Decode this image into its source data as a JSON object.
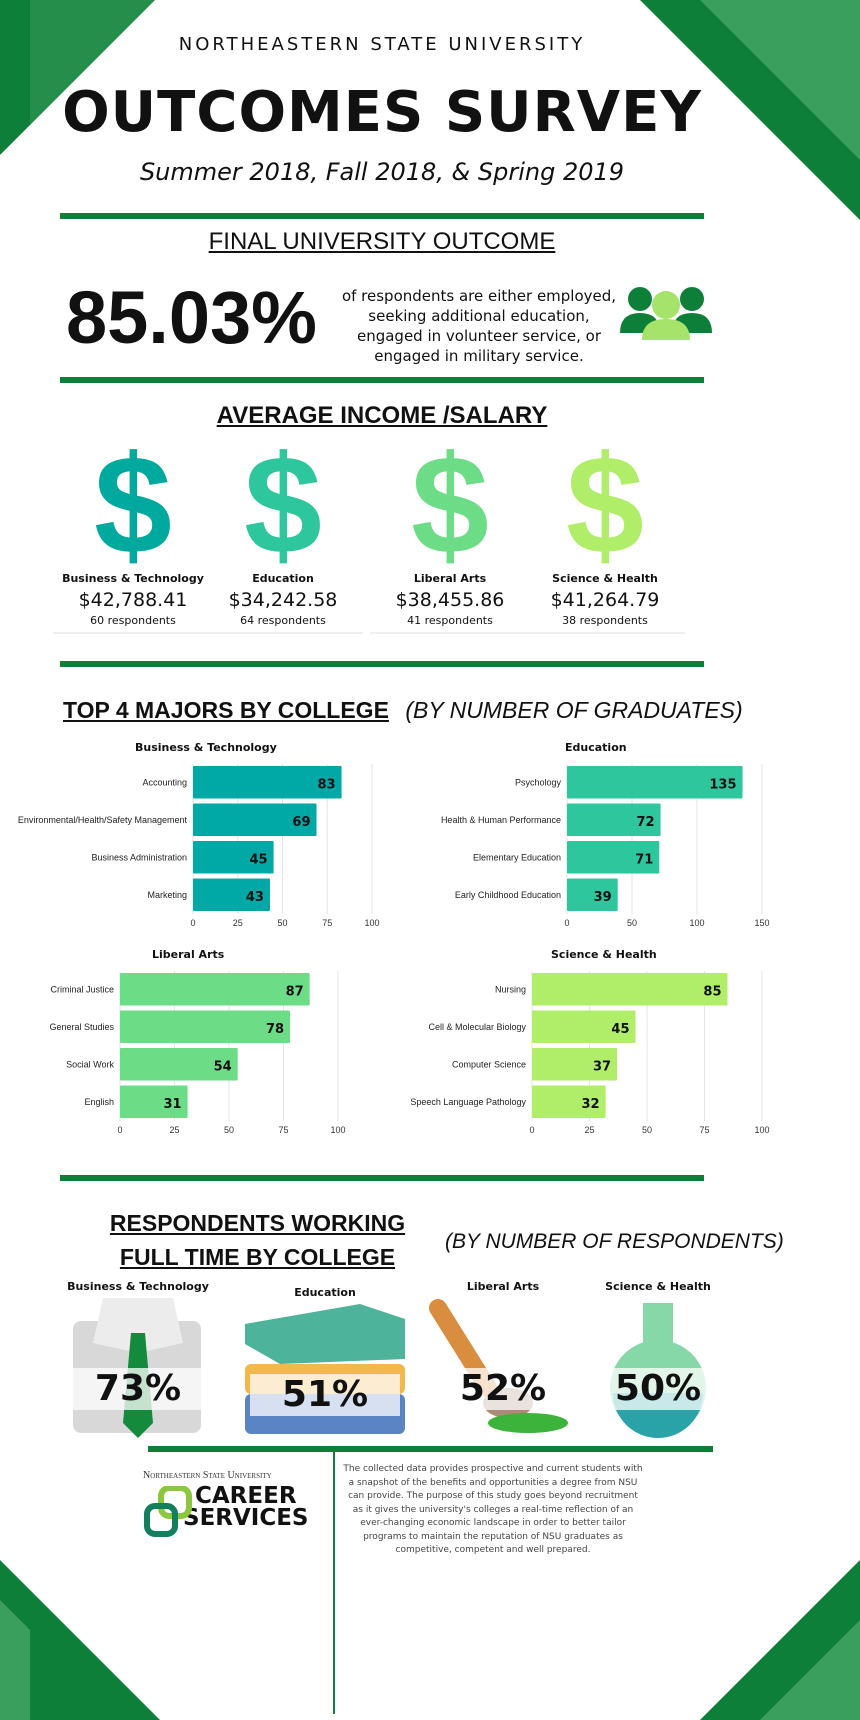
{
  "header": {
    "university": "NORTHEASTERN STATE UNIVERSITY",
    "title": "OUTCOMES SURVEY",
    "subtitle": "Summer 2018, Fall 2018, & Spring 2019"
  },
  "outcome": {
    "heading": "FINAL UNIVERSITY OUTCOME",
    "value": "85.03%",
    "description": "of respondents are either employed, seeking additional education, engaged in volunteer service, or engaged in military service.",
    "icon": "people-group-icon"
  },
  "income": {
    "heading": "AVERAGE INCOME /SALARY",
    "colleges": [
      {
        "name": "Business & Technology",
        "salary": "$42,788.41",
        "respondents": "60 respondents",
        "color": "#00a99d"
      },
      {
        "name": "Education",
        "salary": "$34,242.58",
        "respondents": "64 respondents",
        "color": "#2ec69c"
      },
      {
        "name": "Liberal Arts",
        "salary": "$38,455.86",
        "respondents": "41 respondents",
        "color": "#6ddc87"
      },
      {
        "name": "Science & Health",
        "salary": "$41,264.79",
        "respondents": "38 respondents",
        "color": "#b0ed68"
      }
    ],
    "symbol": "$"
  },
  "majors": {
    "heading": "TOP 4 MAJORS BY COLLEGE",
    "subheading": "(BY NUMBER OF GRADUATES)"
  },
  "chart_data": [
    {
      "type": "bar",
      "orientation": "horizontal",
      "title": "Business & Technology",
      "categories": [
        "Accounting",
        "Environmental/Health/Safety Management",
        "Business Administration",
        "Marketing"
      ],
      "values": [
        83,
        69,
        45,
        43
      ],
      "xlim": [
        0,
        100
      ],
      "xticks": [
        0,
        25,
        50,
        75,
        100
      ],
      "color": "#00a9a5",
      "grid": true
    },
    {
      "type": "bar",
      "orientation": "horizontal",
      "title": "Education",
      "categories": [
        "Psychology",
        "Health & Human Performance",
        "Elementary Education",
        "Early Childhood Education"
      ],
      "values": [
        135,
        72,
        71,
        39
      ],
      "xlim": [
        0,
        150
      ],
      "xticks": [
        0,
        50,
        100,
        150
      ],
      "color": "#2ec69c",
      "grid": true
    },
    {
      "type": "bar",
      "orientation": "horizontal",
      "title": "Liberal Arts",
      "categories": [
        "Criminal Justice",
        "General Studies",
        "Social Work",
        "English"
      ],
      "values": [
        87,
        78,
        54,
        31
      ],
      "xlim": [
        0,
        100
      ],
      "xticks": [
        0,
        25,
        50,
        75,
        100
      ],
      "color": "#6ddc87",
      "grid": true
    },
    {
      "type": "bar",
      "orientation": "horizontal",
      "title": "Science & Health",
      "categories": [
        "Nursing",
        "Cell & Molecular Biology",
        "Computer Science",
        "Speech Language Pathology"
      ],
      "values": [
        85,
        45,
        37,
        32
      ],
      "xlim": [
        0,
        100
      ],
      "xticks": [
        0,
        25,
        50,
        75,
        100
      ],
      "color": "#b0ed68",
      "grid": true
    }
  ],
  "fulltime": {
    "heading_line1": "RESPONDENTS WORKING",
    "heading_line2": "FULL TIME BY COLLEGE",
    "subheading": "(BY NUMBER OF RESPONDENTS)",
    "colleges": [
      {
        "name": "Business & Technology",
        "value": "73%",
        "icon": "shirt-tie-icon"
      },
      {
        "name": "Education",
        "value": "51%",
        "icon": "books-icon"
      },
      {
        "name": "Liberal Arts",
        "value": "52%",
        "icon": "paintbrush-icon"
      },
      {
        "name": "Science & Health",
        "value": "50%",
        "icon": "flask-icon"
      }
    ]
  },
  "footer": {
    "logo_university": "Northeastern State University",
    "logo_line1": "CAREER",
    "logo_line2": "SERVICES",
    "text": "The collected data provides prospective and current students with a snapshot of the benefits and opportunities a degree from NSU can provide. The purpose of this study goes beyond recruitment as it gives the university's colleges a real-time reflection of an ever-changing economic landscape in order to better tailor programs to maintain the reputation of NSU graduates as competitive, competent and well prepared."
  },
  "colors": {
    "primary_green": "#0e7f39",
    "accent_green": "#3a9e5c"
  }
}
